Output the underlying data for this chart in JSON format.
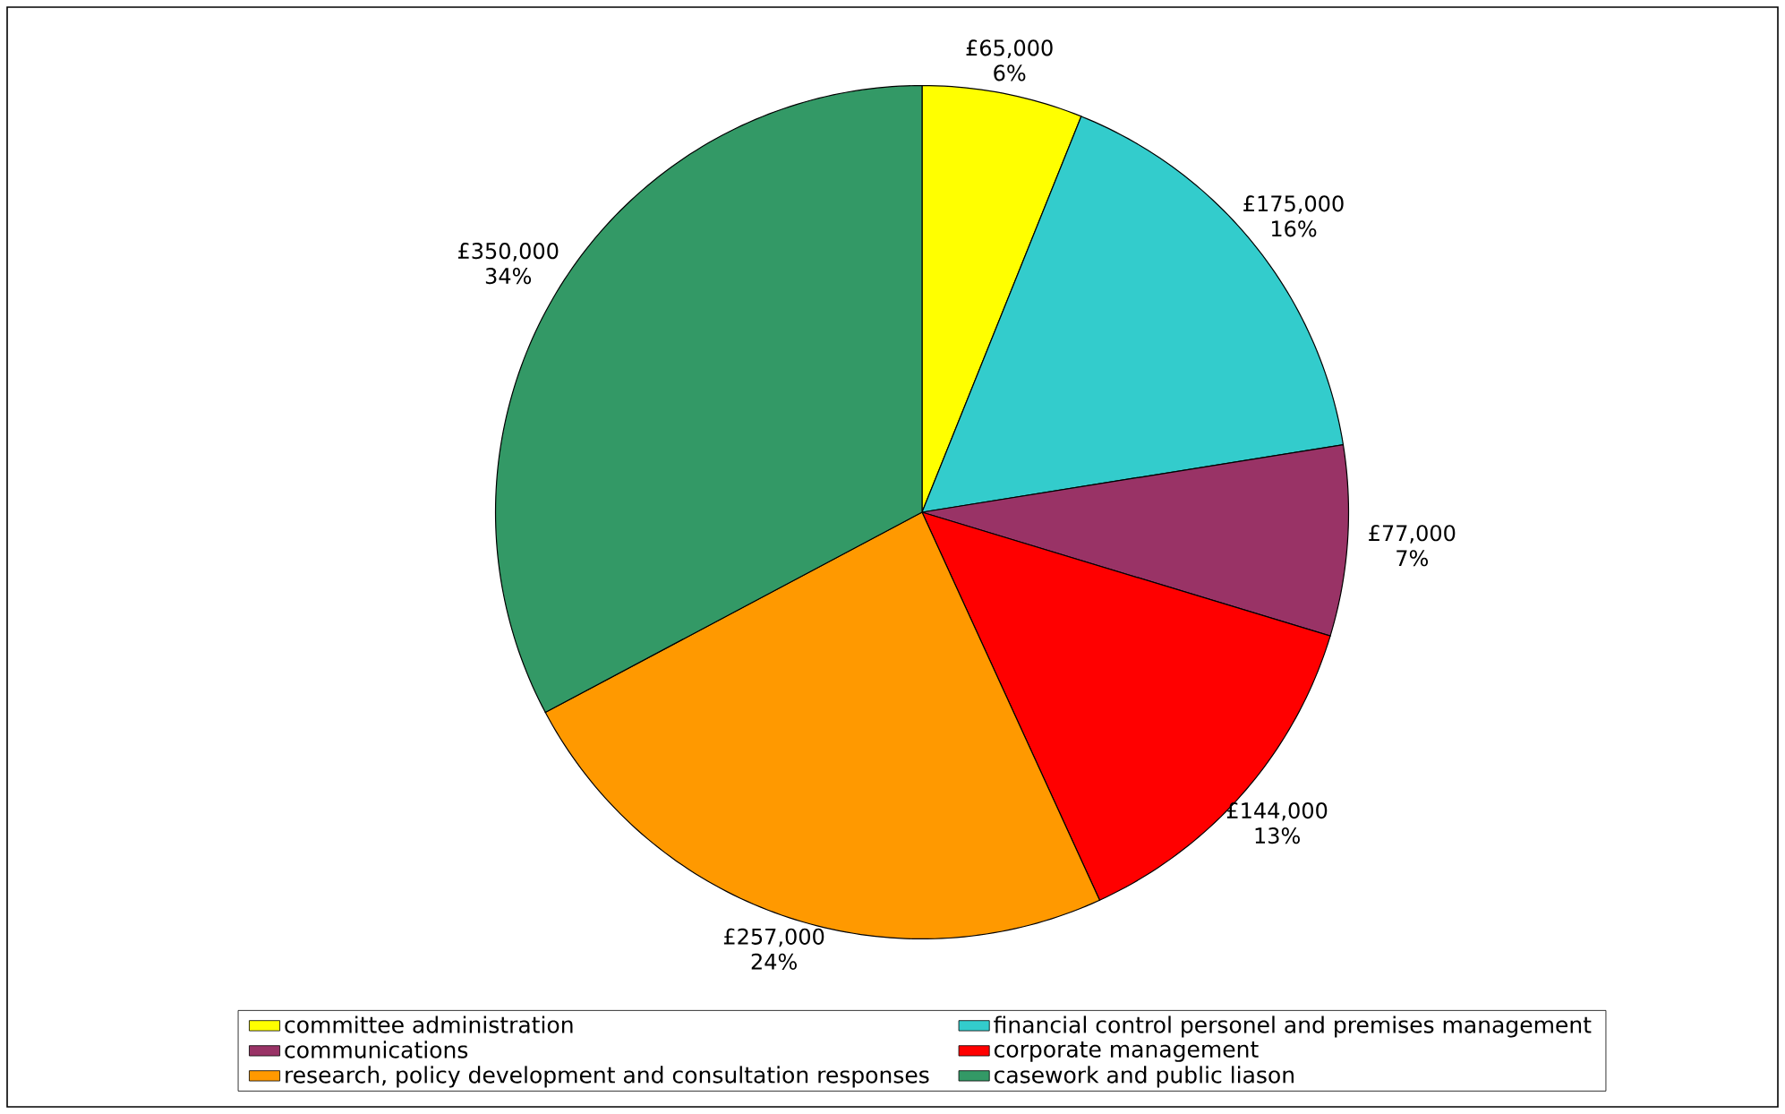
{
  "chart_data": {
    "type": "pie",
    "categories": [
      "committee administration",
      "financial control personel and premises management",
      "communications",
      "corporate management",
      "research, policy development and consultation responses",
      "casework and public liason"
    ],
    "values": [
      65000,
      175000,
      77000,
      144000,
      257000,
      350000
    ],
    "value_labels": [
      "£65,000 6%",
      "£175,000 16%",
      "£77,000 7%",
      "£144,000 13%",
      "£257,000 24%",
      "£350,000 34%"
    ],
    "colors": [
      "#ffff00",
      "#33cccc",
      "#993366",
      "#ff0000",
      "#ff9900",
      "#339966"
    ],
    "legend": "bottom"
  }
}
